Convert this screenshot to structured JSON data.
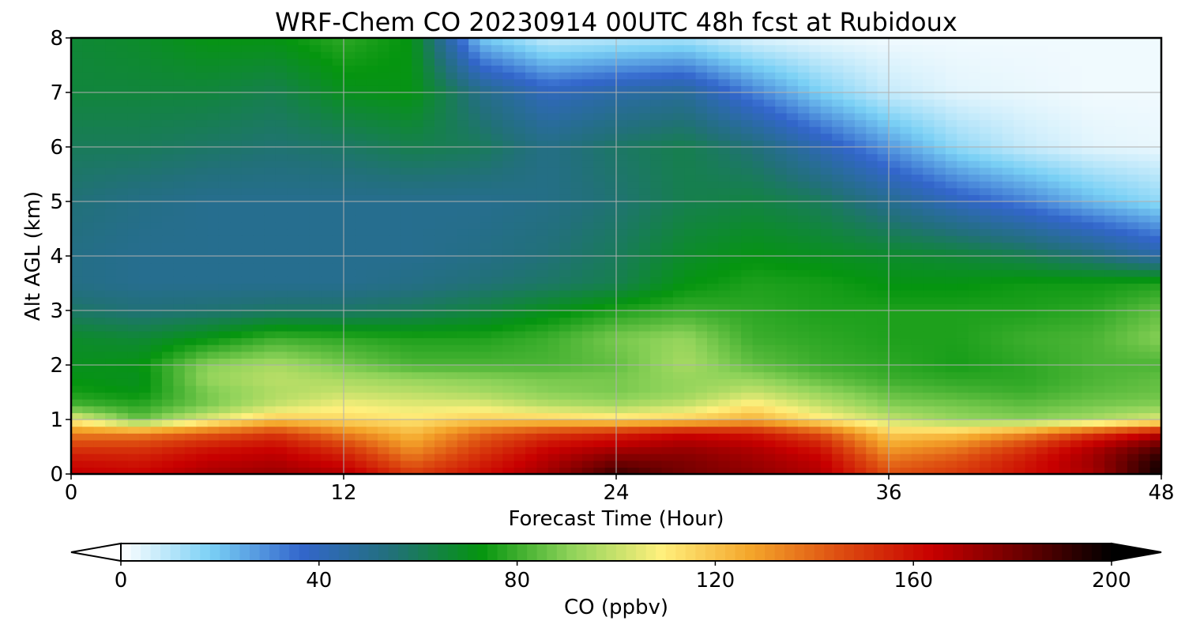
{
  "chart_data": {
    "type": "heatmap",
    "title": "WRF-Chem CO  20230914 00UTC 48h fcst at Rubidoux",
    "xlabel": "Forecast Time (Hour)",
    "ylabel": "Alt AGL (km)",
    "xlim": [
      0,
      48
    ],
    "ylim": [
      0,
      8
    ],
    "xticks": [
      0,
      12,
      24,
      36,
      48
    ],
    "xtick_labels": [
      "0",
      "12",
      "24",
      "36",
      "48"
    ],
    "yticks": [
      0,
      1,
      2,
      3,
      4,
      5,
      6,
      7,
      8
    ],
    "ytick_labels": [
      "0",
      "1",
      "2",
      "3",
      "4",
      "5",
      "6",
      "7",
      "8"
    ],
    "grid": true,
    "colorbar": {
      "label": "CO  (ppbv)",
      "range": [
        0,
        200
      ],
      "ticks": [
        0,
        40,
        80,
        120,
        160,
        200
      ],
      "tick_labels": [
        "0",
        "40",
        "80",
        "120",
        "160",
        "200"
      ],
      "extend": "both",
      "colors": [
        "#ffffff",
        "#7ad0f5",
        "#3366cc",
        "#22707a",
        "#05950f",
        "#8fd35a",
        "#fff07d",
        "#f4a52a",
        "#dd4c10",
        "#c80000",
        "#6b0000",
        "#000000"
      ]
    },
    "x": [
      0,
      3,
      6,
      9,
      12,
      15,
      18,
      21,
      24,
      27,
      30,
      33,
      36,
      39,
      42,
      45,
      48
    ],
    "y": [
      0,
      0.25,
      0.5,
      0.75,
      1,
      1.25,
      1.5,
      1.75,
      2,
      2.5,
      3,
      3.5,
      4,
      5,
      6,
      7,
      8
    ],
    "values": [
      [
        165,
        163,
        170,
        173,
        168,
        150,
        160,
        172,
        190,
        180,
        175,
        168,
        145,
        150,
        160,
        170,
        198
      ],
      [
        160,
        158,
        165,
        168,
        160,
        140,
        155,
        168,
        180,
        178,
        172,
        165,
        138,
        145,
        158,
        172,
        195
      ],
      [
        150,
        150,
        158,
        162,
        150,
        130,
        148,
        162,
        168,
        172,
        168,
        158,
        128,
        135,
        150,
        168,
        185
      ],
      [
        135,
        135,
        142,
        150,
        135,
        122,
        140,
        150,
        155,
        162,
        158,
        145,
        118,
        120,
        132,
        150,
        165
      ],
      [
        108,
        85,
        105,
        120,
        115,
        112,
        118,
        118,
        115,
        118,
        125,
        112,
        100,
        92,
        90,
        95,
        105
      ],
      [
        82,
        78,
        88,
        100,
        108,
        105,
        105,
        98,
        95,
        100,
        112,
        100,
        90,
        88,
        85,
        88,
        90
      ],
      [
        75,
        72,
        88,
        96,
        100,
        98,
        95,
        90,
        88,
        92,
        100,
        92,
        85,
        82,
        80,
        84,
        86
      ],
      [
        72,
        70,
        92,
        98,
        95,
        92,
        90,
        88,
        88,
        92,
        92,
        85,
        80,
        78,
        78,
        82,
        85
      ],
      [
        70,
        72,
        90,
        95,
        88,
        82,
        82,
        82,
        85,
        95,
        85,
        80,
        78,
        75,
        78,
        82,
        82
      ],
      [
        68,
        66,
        72,
        80,
        78,
        76,
        76,
        80,
        88,
        92,
        80,
        78,
        76,
        76,
        80,
        82,
        90
      ],
      [
        58,
        55,
        56,
        58,
        58,
        60,
        64,
        70,
        76,
        80,
        78,
        76,
        76,
        76,
        76,
        78,
        85
      ],
      [
        52,
        50,
        50,
        50,
        50,
        52,
        55,
        58,
        62,
        72,
        76,
        75,
        72,
        72,
        74,
        74,
        76
      ],
      [
        52,
        50,
        50,
        50,
        50,
        50,
        52,
        55,
        60,
        68,
        72,
        70,
        68,
        66,
        62,
        55,
        45
      ],
      [
        55,
        52,
        50,
        50,
        50,
        50,
        50,
        52,
        56,
        62,
        64,
        60,
        50,
        40,
        32,
        22,
        15
      ],
      [
        60,
        60,
        58,
        56,
        58,
        62,
        60,
        52,
        58,
        62,
        55,
        42,
        28,
        15,
        8,
        4,
        3
      ],
      [
        65,
        65,
        65,
        62,
        70,
        72,
        52,
        40,
        45,
        48,
        32,
        18,
        8,
        4,
        3,
        2,
        2
      ],
      [
        66,
        68,
        72,
        72,
        78,
        72,
        20,
        8,
        10,
        12,
        5,
        3,
        2,
        2,
        2,
        2,
        2
      ]
    ]
  }
}
